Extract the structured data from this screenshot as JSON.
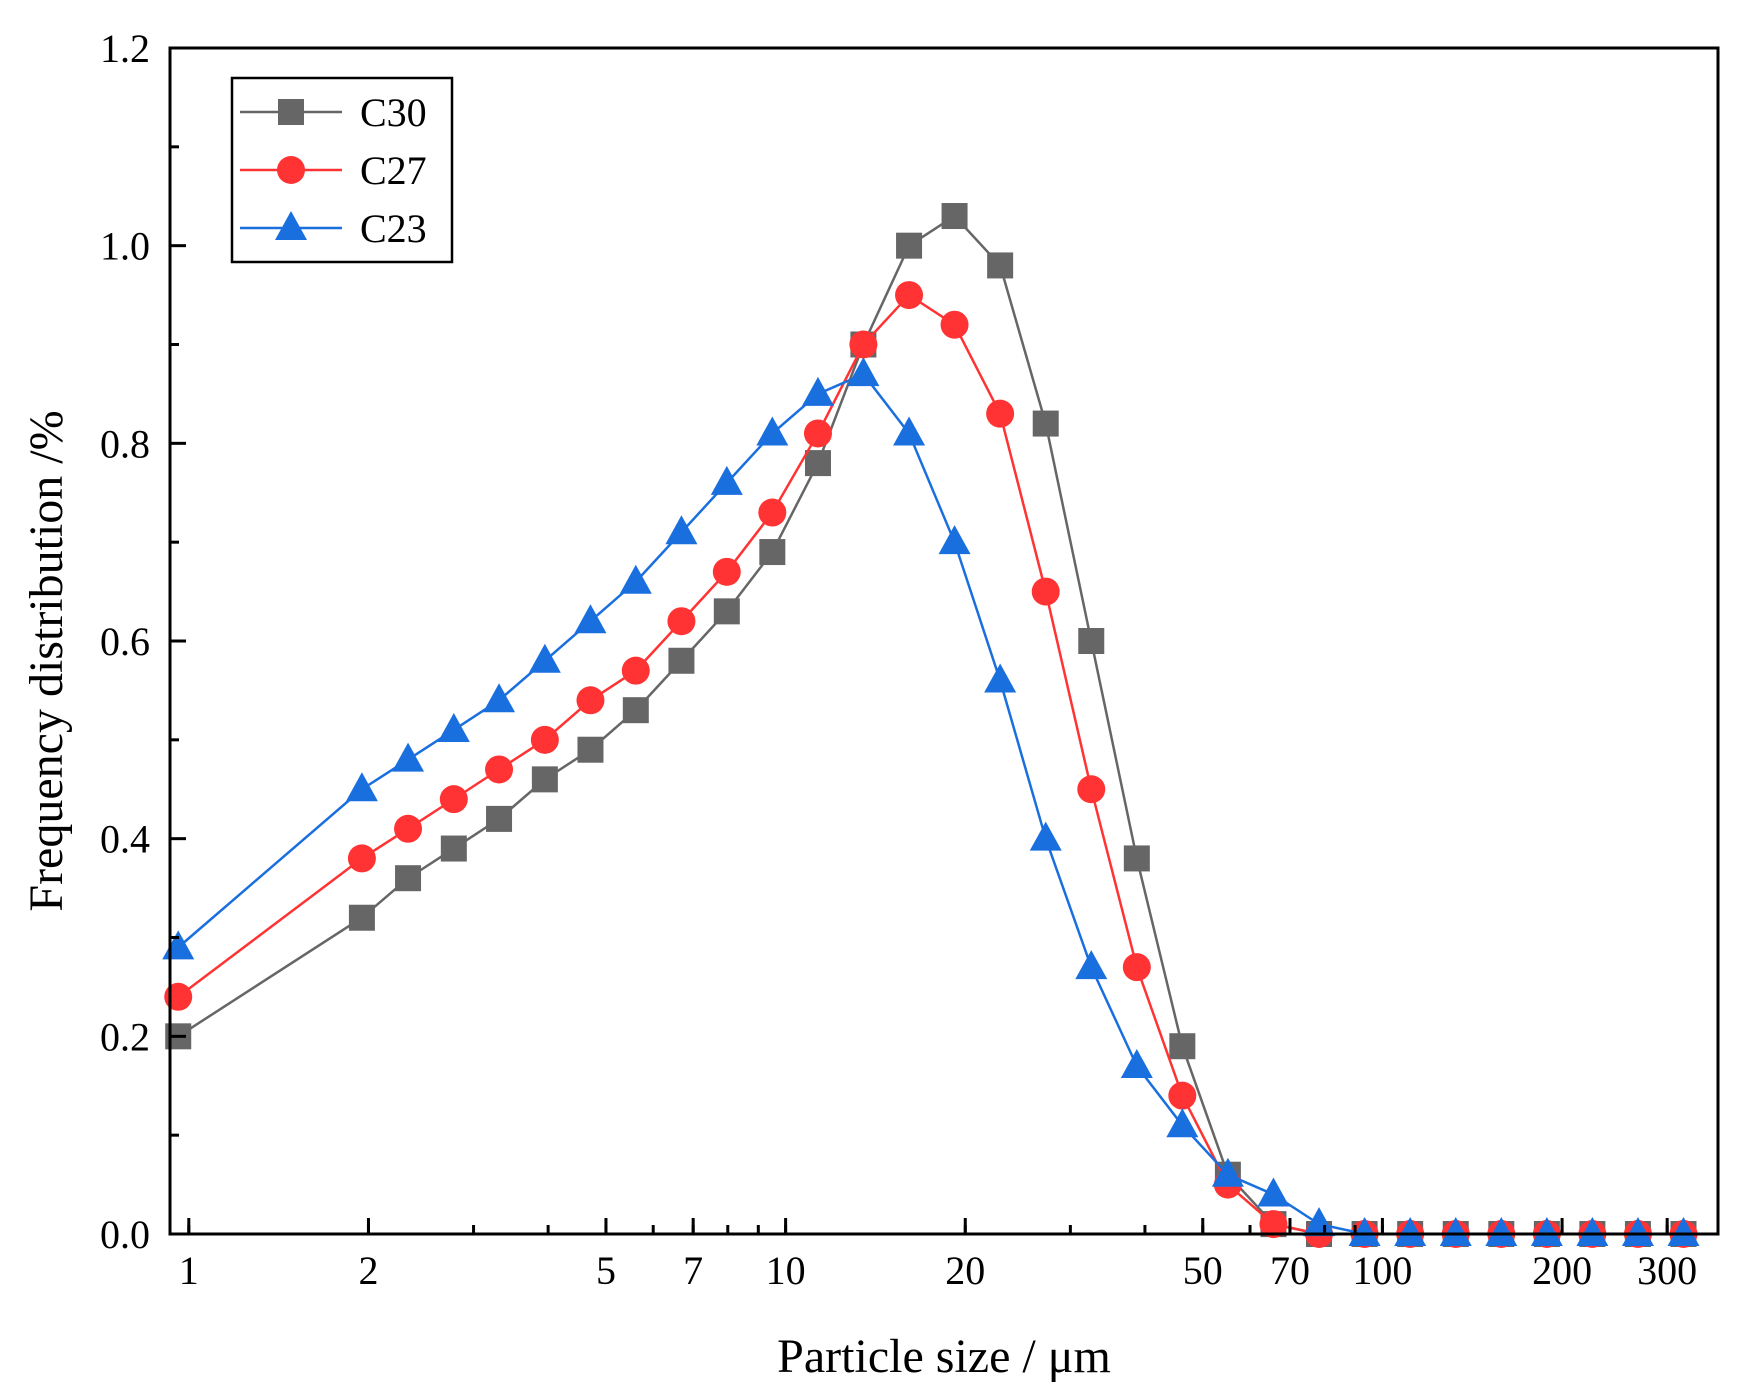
{
  "chart_data": {
    "type": "line",
    "xscale": "log",
    "xlabel": "Particle size / μm",
    "ylabel": "Frequency distribution /%",
    "xlim": [
      0.93,
      365
    ],
    "ylim": [
      0,
      1.2
    ],
    "legend_position": "top-left",
    "x_ticks": [
      {
        "value": 1,
        "label": "1"
      },
      {
        "value": 2,
        "label": "2"
      },
      {
        "value": 5,
        "label": "5"
      },
      {
        "value": 7,
        "label": "7"
      },
      {
        "value": 10,
        "label": "10"
      },
      {
        "value": 20,
        "label": "20"
      },
      {
        "value": 50,
        "label": "50"
      },
      {
        "value": 70,
        "label": "70"
      },
      {
        "value": 100,
        "label": "100"
      },
      {
        "value": 200,
        "label": "200"
      },
      {
        "value": 300,
        "label": "300"
      }
    ],
    "y_ticks": [
      {
        "value": 0.0,
        "label": "0.0"
      },
      {
        "value": 0.2,
        "label": "0.2"
      },
      {
        "value": 0.4,
        "label": "0.4"
      },
      {
        "value": 0.6,
        "label": "0.6"
      },
      {
        "value": 0.8,
        "label": "0.8"
      },
      {
        "value": 1.0,
        "label": "1.0"
      },
      {
        "value": 1.2,
        "label": "1.2"
      }
    ],
    "x": [
      0.96,
      1.95,
      2.33,
      2.78,
      3.31,
      3.95,
      4.71,
      5.61,
      6.69,
      7.97,
      9.5,
      11.33,
      13.5,
      16.1,
      19.19,
      22.88,
      27.28,
      32.52,
      38.77,
      46.21,
      55.09,
      65.68,
      78.3,
      93.35,
      111.3,
      132.7,
      158.2,
      188.6,
      224.8,
      268.0,
      319.5
    ],
    "series": [
      {
        "name": "C30",
        "color": "#666666",
        "marker": "square",
        "values": [
          0.2,
          0.32,
          0.36,
          0.39,
          0.42,
          0.46,
          0.49,
          0.53,
          0.58,
          0.63,
          0.69,
          0.78,
          0.9,
          1.0,
          1.03,
          0.98,
          0.82,
          0.6,
          0.38,
          0.19,
          0.06,
          0.01,
          0.0,
          0.0,
          0.0,
          0.0,
          0.0,
          0.0,
          0.0,
          0.0,
          0.0
        ]
      },
      {
        "name": "C27",
        "color": "#ff3333",
        "marker": "circle",
        "values": [
          0.24,
          0.38,
          0.41,
          0.44,
          0.47,
          0.5,
          0.54,
          0.57,
          0.62,
          0.67,
          0.73,
          0.81,
          0.9,
          0.95,
          0.92,
          0.83,
          0.65,
          0.45,
          0.27,
          0.14,
          0.05,
          0.01,
          0.0,
          0.0,
          0.0,
          0.0,
          0.0,
          0.0,
          0.0,
          0.0,
          0.0
        ]
      },
      {
        "name": "C23",
        "color": "#1a6fdf",
        "marker": "triangle",
        "values": [
          0.29,
          0.45,
          0.48,
          0.51,
          0.54,
          0.58,
          0.62,
          0.66,
          0.71,
          0.76,
          0.81,
          0.85,
          0.87,
          0.81,
          0.7,
          0.56,
          0.4,
          0.27,
          0.17,
          0.11,
          0.06,
          0.04,
          0.01,
          0.0,
          0.0,
          0.0,
          0.0,
          0.0,
          0.0,
          0.0,
          0.0
        ]
      }
    ]
  }
}
